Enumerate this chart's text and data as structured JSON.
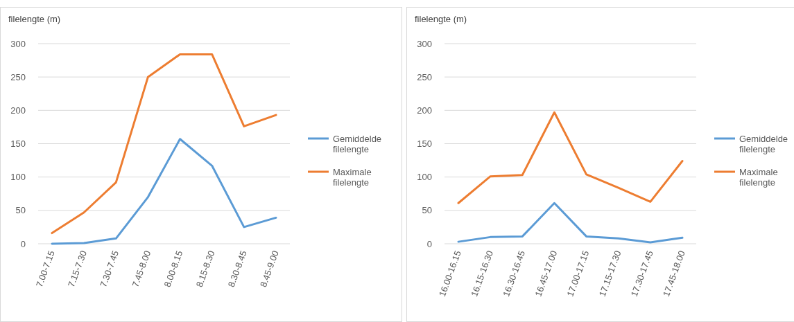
{
  "chart_data": [
    {
      "type": "line",
      "ylabel": "filelengte (m)",
      "categories": [
        "7.00-7.15",
        "7.15-7.30",
        "7.30-7.45",
        "7.45-8.00",
        "8.00-8.15",
        "8.15-8.30",
        "8.30-8.45",
        "8.45-9.00"
      ],
      "series": [
        {
          "name": "Gemiddelde filelengte",
          "color": "#5b9bd5",
          "values": [
            0,
            1,
            8,
            70,
            157,
            117,
            25,
            39
          ]
        },
        {
          "name": "Maximale filelengte",
          "color": "#ed7d31",
          "values": [
            16,
            47,
            92,
            250,
            284,
            284,
            176,
            193
          ]
        }
      ],
      "ylim": [
        0,
        300
      ],
      "yticks": [
        0,
        50,
        100,
        150,
        200,
        250,
        300
      ],
      "grid": "y",
      "legend": "right"
    },
    {
      "type": "line",
      "ylabel": "filelengte (m)",
      "categories": [
        "16.00-16.15",
        "16.15-16.30",
        "16.30-16.45",
        "16.45-17.00",
        "17.00-17.15",
        "17.15-17.30",
        "17.30-17.45",
        "17.45-18.00"
      ],
      "series": [
        {
          "name": "Gemiddelde filelengte",
          "color": "#5b9bd5",
          "values": [
            3,
            10,
            11,
            61,
            11,
            8,
            2,
            9
          ]
        },
        {
          "name": "Maximale filelengte",
          "color": "#ed7d31",
          "values": [
            61,
            101,
            103,
            197,
            104,
            84,
            63,
            124
          ]
        }
      ],
      "ylim": [
        0,
        300
      ],
      "yticks": [
        0,
        50,
        100,
        150,
        200,
        250,
        300
      ],
      "grid": "y",
      "legend": "right"
    }
  ]
}
